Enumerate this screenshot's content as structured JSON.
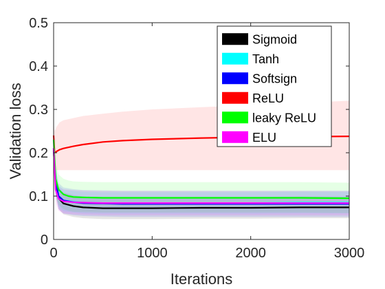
{
  "chart_data": {
    "type": "line",
    "title": "",
    "xlabel": "Iterations",
    "ylabel": "Validation loss",
    "xlim": [
      0,
      3000
    ],
    "ylim": [
      0,
      0.5
    ],
    "xticks": [
      0,
      1000,
      2000,
      3000
    ],
    "xtick_labels": [
      "0",
      "1000",
      "2000",
      "3000"
    ],
    "yticks": [
      0,
      0.1,
      0.2,
      0.3,
      0.4,
      0.5
    ],
    "ytick_labels": [
      "0",
      "0.1",
      "0.2",
      "0.3",
      "0.4",
      "0.5"
    ],
    "grid": false,
    "legend_position": "top-right",
    "series": [
      {
        "name": "Sigmoid",
        "color": "#000000",
        "x": [
          0,
          20,
          50,
          100,
          200,
          300,
          500,
          700,
          1000,
          1500,
          2000,
          2500,
          3000
        ],
        "y": [
          0.205,
          0.13,
          0.095,
          0.083,
          0.077,
          0.074,
          0.072,
          0.072,
          0.072,
          0.073,
          0.073,
          0.074,
          0.074
        ],
        "band": [
          [
            0.19,
            0.22
          ],
          [
            0.1,
            0.16
          ],
          [
            0.07,
            0.12
          ],
          [
            0.058,
            0.108
          ],
          [
            0.052,
            0.102
          ],
          [
            0.049,
            0.099
          ],
          [
            0.047,
            0.097
          ],
          [
            0.047,
            0.097
          ],
          [
            0.047,
            0.097
          ],
          [
            0.048,
            0.098
          ],
          [
            0.048,
            0.098
          ],
          [
            0.049,
            0.099
          ],
          [
            0.049,
            0.099
          ]
        ]
      },
      {
        "name": "Tanh",
        "color": "#00ffff",
        "x": [
          0,
          20,
          50,
          100,
          200,
          300,
          500,
          700,
          1000,
          1500,
          2000,
          2500,
          3000
        ],
        "y": [
          0.21,
          0.14,
          0.1,
          0.09,
          0.087,
          0.085,
          0.084,
          0.084,
          0.084,
          0.084,
          0.084,
          0.085,
          0.085
        ],
        "band": [
          [
            0.195,
            0.225
          ],
          [
            0.11,
            0.17
          ],
          [
            0.075,
            0.125
          ],
          [
            0.065,
            0.115
          ],
          [
            0.062,
            0.112
          ],
          [
            0.06,
            0.11
          ],
          [
            0.059,
            0.109
          ],
          [
            0.059,
            0.109
          ],
          [
            0.059,
            0.109
          ],
          [
            0.059,
            0.109
          ],
          [
            0.059,
            0.109
          ],
          [
            0.06,
            0.11
          ],
          [
            0.06,
            0.11
          ]
        ]
      },
      {
        "name": "Softsign",
        "color": "#0000ff",
        "x": [
          0,
          20,
          50,
          100,
          200,
          300,
          500,
          700,
          1000,
          1500,
          2000,
          2500,
          3000
        ],
        "y": [
          0.21,
          0.135,
          0.1,
          0.09,
          0.086,
          0.084,
          0.083,
          0.082,
          0.082,
          0.082,
          0.082,
          0.082,
          0.082
        ],
        "band": [
          [
            0.195,
            0.225
          ],
          [
            0.105,
            0.165
          ],
          [
            0.07,
            0.13
          ],
          [
            0.06,
            0.12
          ],
          [
            0.056,
            0.116
          ],
          [
            0.054,
            0.114
          ],
          [
            0.053,
            0.113
          ],
          [
            0.052,
            0.112
          ],
          [
            0.052,
            0.112
          ],
          [
            0.052,
            0.112
          ],
          [
            0.052,
            0.112
          ],
          [
            0.052,
            0.112
          ],
          [
            0.052,
            0.112
          ]
        ]
      },
      {
        "name": "ReLU",
        "color": "#ff0000",
        "x": [
          0,
          10,
          30,
          60,
          100,
          200,
          300,
          500,
          700,
          1000,
          1500,
          2000,
          2500,
          3000
        ],
        "y": [
          0.24,
          0.2,
          0.203,
          0.207,
          0.21,
          0.215,
          0.219,
          0.225,
          0.228,
          0.231,
          0.234,
          0.236,
          0.237,
          0.238
        ],
        "band": [
          [
            0.21,
            0.27
          ],
          [
            0.16,
            0.25
          ],
          [
            0.16,
            0.26
          ],
          [
            0.16,
            0.27
          ],
          [
            0.16,
            0.275
          ],
          [
            0.16,
            0.28
          ],
          [
            0.16,
            0.285
          ],
          [
            0.16,
            0.29
          ],
          [
            0.16,
            0.295
          ],
          [
            0.16,
            0.3
          ],
          [
            0.16,
            0.305
          ],
          [
            0.16,
            0.31
          ],
          [
            0.16,
            0.315
          ],
          [
            0.16,
            0.32
          ]
        ]
      },
      {
        "name": "leaky ReLU",
        "color": "#00ff00",
        "x": [
          0,
          20,
          50,
          100,
          150,
          200,
          300,
          500,
          700,
          1000,
          1500,
          2000,
          2500,
          3000
        ],
        "y": [
          0.23,
          0.14,
          0.115,
          0.104,
          0.1,
          0.098,
          0.097,
          0.096,
          0.096,
          0.096,
          0.096,
          0.096,
          0.096,
          0.095
        ],
        "band": [
          [
            0.21,
            0.25
          ],
          [
            0.1,
            0.18
          ],
          [
            0.08,
            0.15
          ],
          [
            0.07,
            0.14
          ],
          [
            0.066,
            0.136
          ],
          [
            0.064,
            0.134
          ],
          [
            0.063,
            0.133
          ],
          [
            0.062,
            0.132
          ],
          [
            0.062,
            0.132
          ],
          [
            0.062,
            0.132
          ],
          [
            0.062,
            0.132
          ],
          [
            0.062,
            0.132
          ],
          [
            0.062,
            0.132
          ],
          [
            0.061,
            0.131
          ]
        ]
      },
      {
        "name": "ELU",
        "color": "#ff00ff",
        "x": [
          0,
          20,
          50,
          100,
          200,
          300,
          500,
          700,
          1000,
          1500,
          2000,
          2500,
          3000
        ],
        "y": [
          0.21,
          0.115,
          0.094,
          0.088,
          0.086,
          0.085,
          0.084,
          0.084,
          0.084,
          0.084,
          0.084,
          0.084,
          0.084
        ],
        "band": [
          [
            0.195,
            0.225
          ],
          [
            0.085,
            0.145
          ],
          [
            0.066,
            0.122
          ],
          [
            0.06,
            0.116
          ],
          [
            0.058,
            0.114
          ],
          [
            0.057,
            0.113
          ],
          [
            0.056,
            0.112
          ],
          [
            0.056,
            0.112
          ],
          [
            0.056,
            0.112
          ],
          [
            0.056,
            0.112
          ],
          [
            0.056,
            0.112
          ],
          [
            0.056,
            0.112
          ],
          [
            0.056,
            0.112
          ]
        ]
      }
    ]
  }
}
